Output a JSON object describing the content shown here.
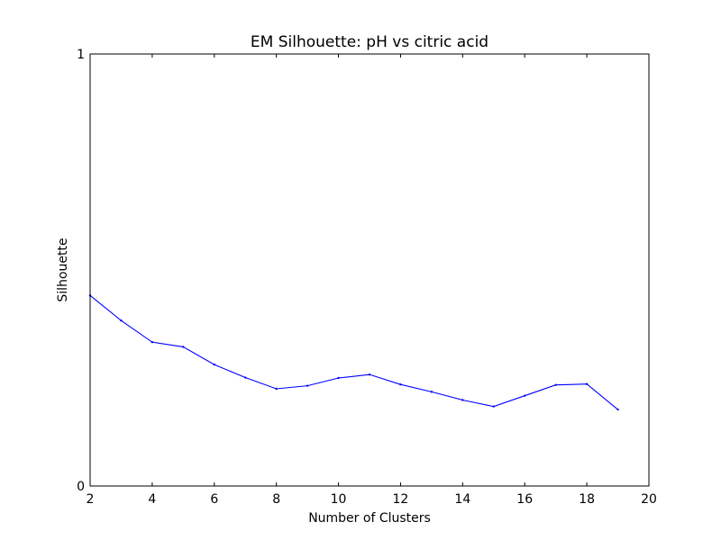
{
  "chart_data": {
    "type": "line",
    "title": "EM Silhouette: pH vs citric acid",
    "xlabel": "Number of Clusters",
    "ylabel": "Silhouette",
    "xlim": [
      2,
      20
    ],
    "ylim": [
      0,
      1
    ],
    "xticks": [
      "2",
      "4",
      "6",
      "8",
      "10",
      "12",
      "14",
      "16",
      "18",
      "20"
    ],
    "yticks": [
      "0",
      "1"
    ],
    "grid": false,
    "legend": "none",
    "series": [
      {
        "color": "#0000ff",
        "x": [
          2,
          3,
          4,
          5,
          6,
          7,
          8,
          9,
          10,
          11,
          12,
          13,
          14,
          15,
          16,
          17,
          18,
          19
        ],
        "y": [
          0.441,
          0.383,
          0.333,
          0.322,
          0.281,
          0.251,
          0.225,
          0.232,
          0.25,
          0.258,
          0.235,
          0.218,
          0.199,
          0.184,
          0.209,
          0.234,
          0.236,
          0.177
        ]
      }
    ]
  }
}
